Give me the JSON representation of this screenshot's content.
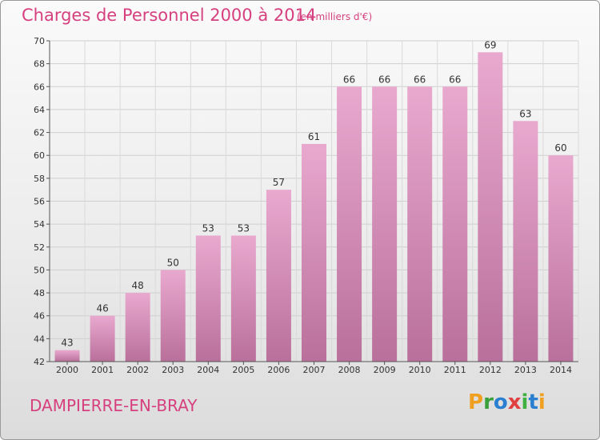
{
  "header": {
    "title": "Charges de Personnel 2000 à 2014",
    "subtitle": "(en milliers d'€)"
  },
  "footer": {
    "commune": "DAMPIERRE-EN-BRAY",
    "logo": {
      "p": "P",
      "r": "r",
      "o": "o",
      "x": "x",
      "i1": "i",
      "t": "t",
      "i2": "i"
    }
  },
  "colors": {
    "bar_top": "#e9a9cf",
    "bar_bottom": "#b9709b",
    "title": "#d6407f"
  },
  "chart_data": {
    "type": "bar",
    "title": "Charges de Personnel 2000 à 2014",
    "subtitle": "(en milliers d'€)",
    "categories": [
      "2000",
      "2001",
      "2002",
      "2003",
      "2004",
      "2005",
      "2006",
      "2007",
      "2008",
      "2009",
      "2010",
      "2011",
      "2012",
      "2013",
      "2014"
    ],
    "values": [
      43,
      46,
      48,
      50,
      53,
      53,
      57,
      61,
      66,
      66,
      66,
      66,
      69,
      63,
      60
    ],
    "ylim": [
      42,
      70
    ],
    "yticks": [
      42,
      44,
      46,
      48,
      50,
      52,
      54,
      56,
      58,
      60,
      62,
      64,
      66,
      68,
      70
    ],
    "grid": true,
    "xlabel": "",
    "ylabel": ""
  }
}
